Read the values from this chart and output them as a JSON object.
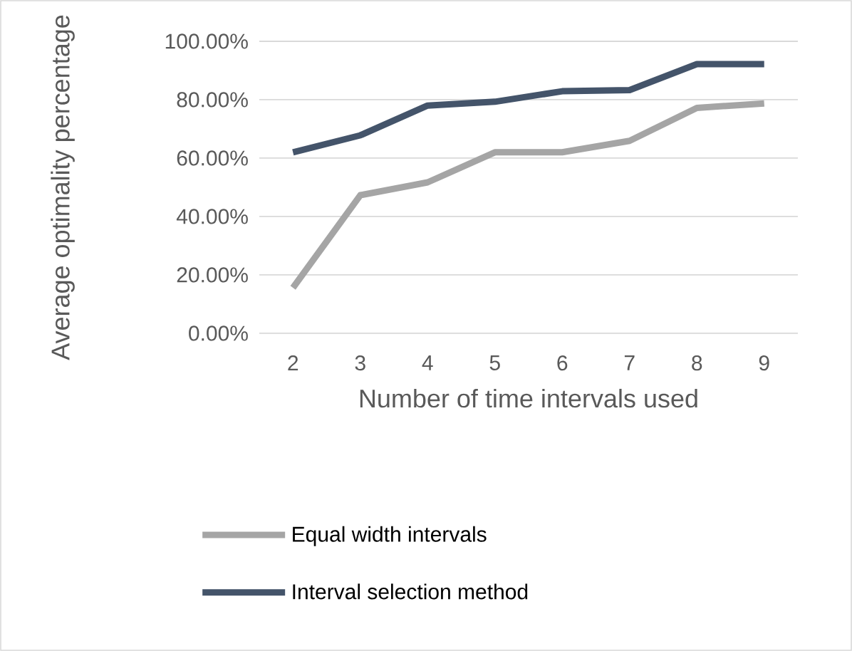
{
  "chart_data": {
    "type": "line",
    "xlabel": "Number of time intervals used",
    "ylabel": "Average optimality percentage",
    "categories": [
      "2",
      "3",
      "4",
      "5",
      "6",
      "7",
      "8",
      "9"
    ],
    "series": [
      {
        "name": "Equal width intervals",
        "color": "#a5a5a5",
        "values": [
          15.6,
          47.3,
          51.7,
          62,
          62,
          65.9,
          77.2,
          78.7
        ]
      },
      {
        "name": "Interval selection method",
        "color": "#44546a",
        "values": [
          62,
          67.8,
          78,
          79.3,
          82.9,
          83.3,
          92.2,
          92.2
        ]
      }
    ],
    "ylim": [
      0,
      100
    ],
    "yticks": [
      {
        "value": 0,
        "label": "0.00%"
      },
      {
        "value": 20,
        "label": "20.00%"
      },
      {
        "value": 40,
        "label": "40.00%"
      },
      {
        "value": 60,
        "label": "60.00%"
      },
      {
        "value": 80,
        "label": "80.00%"
      },
      {
        "value": 100,
        "label": "100.00%"
      }
    ],
    "grid": "y",
    "legend": "bottom",
    "marker": "none",
    "line_style": "solid"
  }
}
